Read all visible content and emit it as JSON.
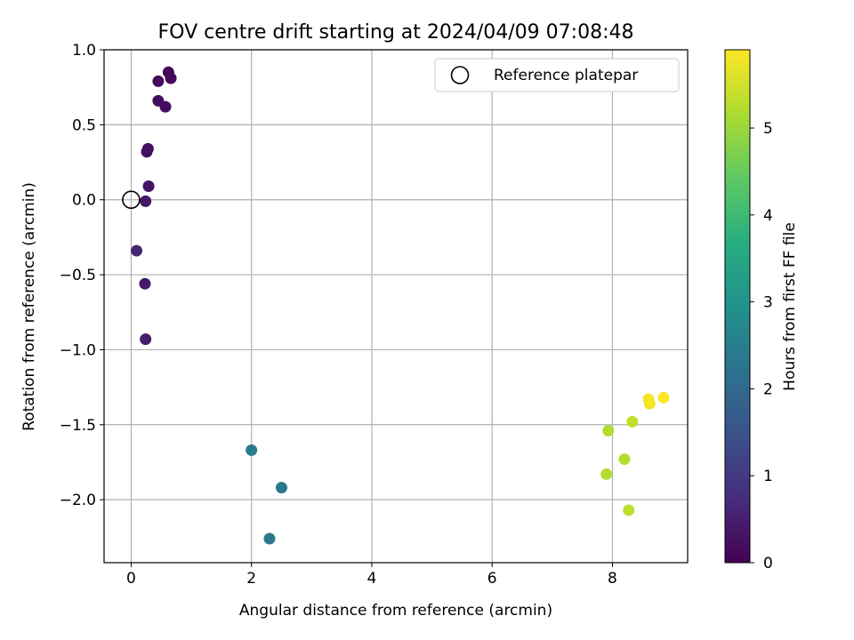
{
  "chart_data": {
    "type": "scatter",
    "title": "FOV centre drift starting at 2024/04/09 07:08:48",
    "xlabel": "Angular distance from reference (arcmin)",
    "ylabel": "Rotation from reference (arcmin)",
    "xlim": [
      -0.45,
      9.25
    ],
    "ylim": [
      -2.42,
      1.0
    ],
    "xticks": [
      0,
      2,
      4,
      6,
      8
    ],
    "xtick_labels": [
      "0",
      "2",
      "4",
      "6",
      "8"
    ],
    "yticks": [
      1.0,
      0.5,
      0.0,
      -0.5,
      -1.0,
      -1.5,
      -2.0
    ],
    "ytick_labels": [
      "1.0",
      "0.5",
      "0.0",
      "−0.5",
      "−1.0",
      "−1.5",
      "−2.0"
    ],
    "grid": true,
    "legend": {
      "label": "Reference platepar",
      "position": "top-right",
      "marker": "hollow-circle"
    },
    "reference_point": {
      "x": 0.0,
      "y": 0.0
    },
    "colorbar": {
      "label": "Hours from first FF file",
      "colormap": "viridis",
      "range": [
        0,
        5.9
      ],
      "ticks": [
        0,
        1,
        2,
        3,
        4,
        5
      ],
      "tick_labels": [
        "0",
        "1",
        "2",
        "3",
        "4",
        "5"
      ]
    },
    "points": [
      {
        "x": 0.62,
        "y": 0.85,
        "hours": 0.1
      },
      {
        "x": 0.66,
        "y": 0.81,
        "hours": 0.1
      },
      {
        "x": 0.45,
        "y": 0.79,
        "hours": 0.15
      },
      {
        "x": 0.45,
        "y": 0.66,
        "hours": 0.2
      },
      {
        "x": 0.57,
        "y": 0.62,
        "hours": 0.2
      },
      {
        "x": 0.28,
        "y": 0.34,
        "hours": 0.25
      },
      {
        "x": 0.26,
        "y": 0.32,
        "hours": 0.25
      },
      {
        "x": 0.29,
        "y": 0.09,
        "hours": 0.3
      },
      {
        "x": 0.24,
        "y": -0.01,
        "hours": 0.35
      },
      {
        "x": 0.09,
        "y": -0.34,
        "hours": 0.6
      },
      {
        "x": 0.23,
        "y": -0.56,
        "hours": 0.4
      },
      {
        "x": 0.24,
        "y": -0.93,
        "hours": 0.45
      },
      {
        "x": 2.0,
        "y": -1.67,
        "hours": 2.45
      },
      {
        "x": 2.5,
        "y": -1.92,
        "hours": 2.35
      },
      {
        "x": 2.3,
        "y": -2.26,
        "hours": 2.35
      },
      {
        "x": 7.93,
        "y": -1.54,
        "hours": 5.2
      },
      {
        "x": 7.9,
        "y": -1.83,
        "hours": 5.2
      },
      {
        "x": 8.2,
        "y": -1.73,
        "hours": 5.25
      },
      {
        "x": 8.33,
        "y": -1.48,
        "hours": 5.35
      },
      {
        "x": 8.27,
        "y": -2.07,
        "hours": 5.3
      },
      {
        "x": 8.6,
        "y": -1.33,
        "hours": 5.8
      },
      {
        "x": 8.62,
        "y": -1.36,
        "hours": 5.8
      },
      {
        "x": 8.85,
        "y": -1.32,
        "hours": 5.9
      }
    ]
  }
}
